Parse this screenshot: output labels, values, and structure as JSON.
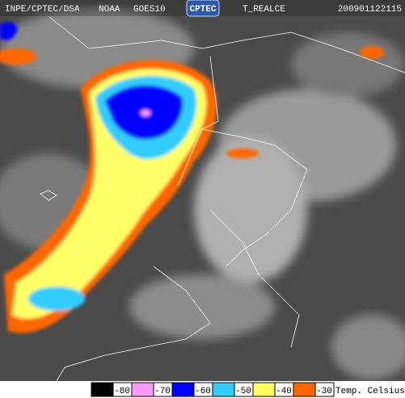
{
  "header": {
    "agency": "INPE/CPTEC/DSA",
    "source": "NOAA",
    "satellite": "GOES10",
    "logo": "CPTEC",
    "product": "T_REALCE",
    "timestamp": "200901122115"
  },
  "legend": {
    "items": [
      {
        "label": "-80",
        "color": "#000000"
      },
      {
        "label": "-70",
        "color": "#ff99ff"
      },
      {
        "label": "-60",
        "color": "#0000ff"
      },
      {
        "label": "-50",
        "color": "#33ccff"
      },
      {
        "label": "-40",
        "color": "#ffff66"
      },
      {
        "label": "-30",
        "color": "#ff6600"
      }
    ],
    "title": "Temp. Celsius"
  }
}
